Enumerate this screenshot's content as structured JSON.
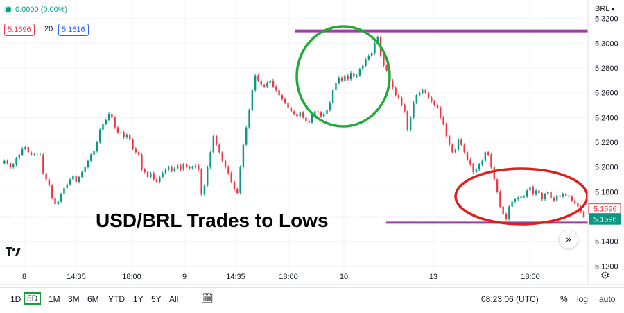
{
  "header": {
    "change": "0.0000 (0.00%)",
    "bid": "5.1596",
    "spread": "20",
    "ask": "5.1616",
    "currency": "BRL"
  },
  "annotation": "USD/BRL Trades to Lows",
  "chart_data": {
    "type": "candlestick",
    "y_ticks": [
      "5.3200",
      "5.3000",
      "5.2800",
      "5.2600",
      "5.2400",
      "5.2200",
      "5.2000",
      "5.1800",
      "5.1600",
      "5.1400",
      "5.1200"
    ],
    "ylim": [
      5.105,
      5.335
    ],
    "x_ticks": [
      "8",
      "14:35",
      "18:00",
      "9",
      "14:35",
      "18:00",
      "10",
      "13",
      "18:00"
    ],
    "last_price_labels": [
      "5.1596",
      "5.1596"
    ],
    "resistance_level": 5.31,
    "support_level": 5.155,
    "dashed_reference_level": 5.1596,
    "series": [
      {
        "values": [
          5.203,
          5.205,
          5.203,
          5.2,
          5.202,
          5.207,
          5.21,
          5.215,
          5.216,
          5.212,
          5.21,
          5.21,
          5.21,
          5.21,
          5.195,
          5.19,
          5.185,
          5.175,
          5.17,
          5.172,
          5.178,
          5.183,
          5.186,
          5.19,
          5.193,
          5.188,
          5.192,
          5.196,
          5.2,
          5.205,
          5.21,
          5.213,
          5.22,
          5.23,
          5.235,
          5.238,
          5.243,
          5.24,
          5.232,
          5.228,
          5.228,
          5.224,
          5.226,
          5.222,
          5.215,
          5.212,
          5.21,
          5.198,
          5.196,
          5.192,
          5.195,
          5.19,
          5.188,
          5.192,
          5.195,
          5.198,
          5.2,
          5.197,
          5.199,
          5.201,
          5.198,
          5.202,
          5.2,
          5.199,
          5.2,
          5.201,
          5.198,
          5.178,
          5.185,
          5.2,
          5.212,
          5.225,
          5.218,
          5.212,
          5.205,
          5.2,
          5.195,
          5.188,
          5.182,
          5.179,
          5.2,
          5.218,
          5.232,
          5.246,
          5.262,
          5.274,
          5.27,
          5.266,
          5.265,
          5.268,
          5.27,
          5.265,
          5.262,
          5.258,
          5.255,
          5.252,
          5.248,
          5.245,
          5.243,
          5.241,
          5.244,
          5.24,
          5.237,
          5.236,
          5.242,
          5.245,
          5.244,
          5.241,
          5.243,
          5.246,
          5.252,
          5.262,
          5.268,
          5.272,
          5.27,
          5.274,
          5.271,
          5.276,
          5.273,
          5.274,
          5.279,
          5.282,
          5.287,
          5.29,
          5.292,
          5.3,
          5.305,
          5.29,
          5.282,
          5.278,
          5.27,
          5.264,
          5.258,
          5.256,
          5.25,
          5.245,
          5.23,
          5.24,
          5.252,
          5.258,
          5.26,
          5.262,
          5.26,
          5.256,
          5.253,
          5.25,
          5.248,
          5.24,
          5.235,
          5.225,
          5.218,
          5.212,
          5.214,
          5.222,
          5.218,
          5.212,
          5.206,
          5.202,
          5.196,
          5.198,
          5.202,
          5.205,
          5.212,
          5.21,
          5.2,
          5.19,
          5.18,
          5.168,
          5.162,
          5.158,
          5.168,
          5.172,
          5.174,
          5.175,
          5.176,
          5.176,
          5.181,
          5.184,
          5.178,
          5.181,
          5.179,
          5.174,
          5.178,
          5.18,
          5.175,
          5.173,
          5.177,
          5.176,
          5.178,
          5.177,
          5.176,
          5.173,
          5.171,
          5.168,
          5.164,
          5.16
        ]
      }
    ]
  }
}
